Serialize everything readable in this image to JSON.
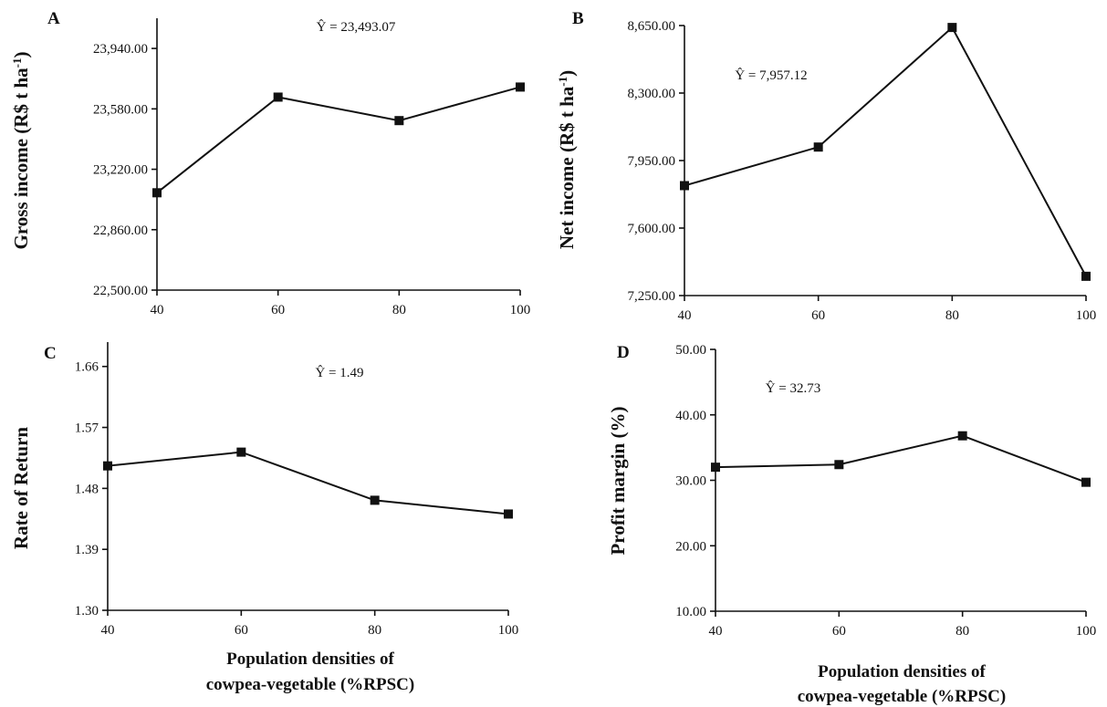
{
  "chart_data": [
    {
      "type": "line",
      "panel": "A",
      "ylabel": "Gross income (R$ t ha",
      "ylabel_sup": "-1",
      "ylabel_end": ")",
      "xlabel": "",
      "equation": "Ŷ = 23,493.07",
      "x": [
        40,
        60,
        80,
        100
      ],
      "values": [
        23080,
        23650,
        23510,
        23710
      ],
      "xlim": [
        40,
        100
      ],
      "ylim": [
        22500,
        24120
      ],
      "xticks": [
        "40",
        "60",
        "80",
        "100"
      ],
      "yticks": [
        "22,500.00",
        "22,860.00",
        "23,220.00",
        "23,580.00",
        "23,940.00"
      ]
    },
    {
      "type": "line",
      "panel": "B",
      "ylabel": "Net income (R$ t ha",
      "ylabel_sup": "-1",
      "ylabel_end": ")",
      "xlabel": "",
      "equation": "Ŷ = 7,957.12",
      "x": [
        40,
        60,
        80,
        100
      ],
      "values": [
        7820,
        8020,
        8640,
        7350
      ],
      "xlim": [
        40,
        100
      ],
      "ylim": [
        7250,
        8650
      ],
      "xticks": [
        "40",
        "60",
        "80",
        "100"
      ],
      "yticks": [
        "7,250.00",
        "7,600.00",
        "7,950.00",
        "8,300.00",
        "8,650.00"
      ]
    },
    {
      "type": "line",
      "panel": "C",
      "ylabel": "Rate of Return",
      "ylabel_sup": "",
      "ylabel_end": "",
      "xlabel": "Population densities of",
      "xlabel2": "cowpea-vegetable (%RPSC)",
      "equation": "Ŷ = 1.49",
      "x": [
        40,
        60,
        80,
        100
      ],
      "values": [
        1.51,
        1.53,
        1.46,
        1.44
      ],
      "xlim": [
        40,
        100
      ],
      "ylim": [
        1.3,
        1.69
      ],
      "xticks": [
        "40",
        "60",
        "80",
        "100"
      ],
      "yticks": [
        "1.30",
        "1.39",
        "1.48",
        "1.57",
        "1.66"
      ]
    },
    {
      "type": "line",
      "panel": "D",
      "ylabel": "Profit margin (%)",
      "ylabel_sup": "",
      "ylabel_end": "",
      "xlabel": "Population densities of",
      "xlabel2": "cowpea-vegetable (%RPSC)",
      "equation": "Ŷ = 32.73",
      "x": [
        40,
        60,
        80,
        100
      ],
      "values": [
        32.0,
        32.4,
        36.8,
        29.7
      ],
      "xlim": [
        40,
        100
      ],
      "ylim": [
        10,
        50
      ],
      "xticks": [
        "40",
        "60",
        "80",
        "100"
      ],
      "yticks": [
        "10.00",
        "20.00",
        "30.00",
        "40.00",
        "50.00"
      ]
    }
  ]
}
